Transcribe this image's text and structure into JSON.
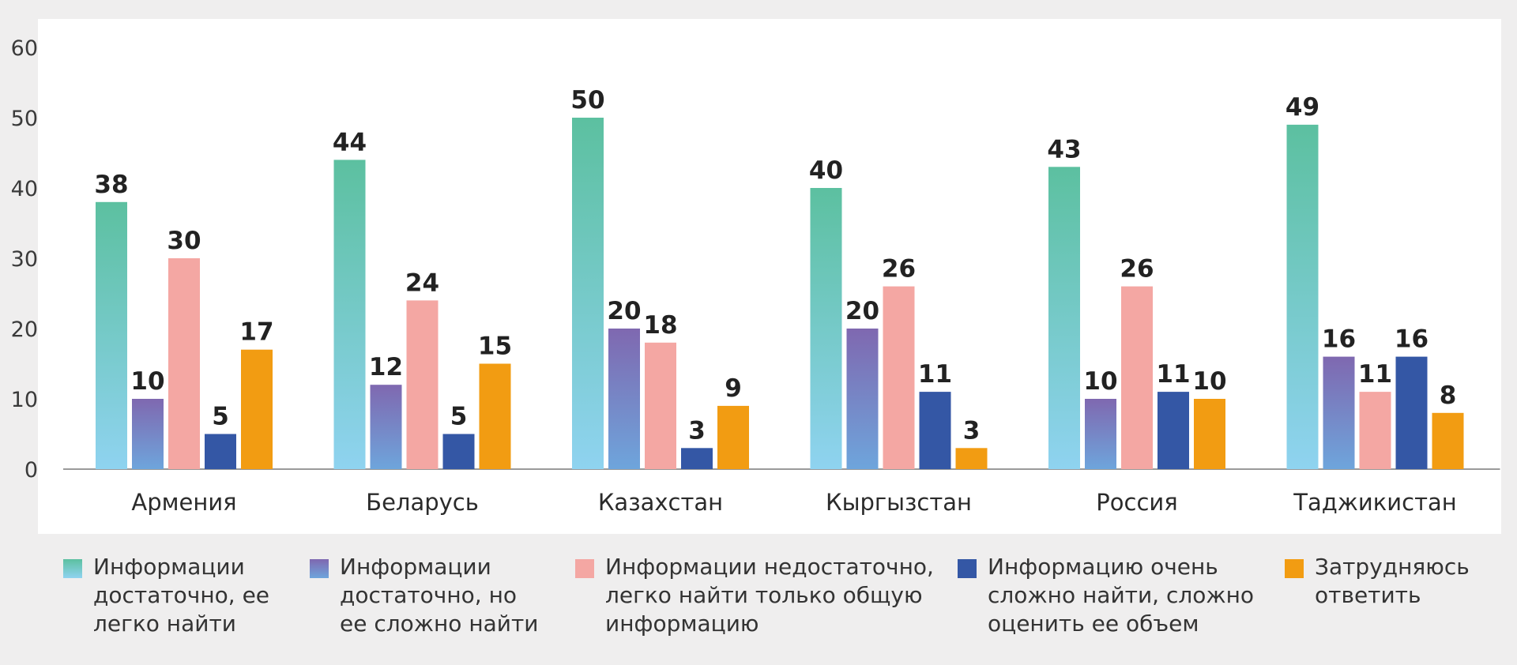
{
  "colors": {
    "frame_bg": "#efeeee",
    "panel_bg": "#ffffff"
  },
  "chart_data": {
    "type": "bar",
    "categories": [
      "Армения",
      "Беларусь",
      "Казахстан",
      "Кыргызстан",
      "Россия",
      "Таджикистан"
    ],
    "ylim": [
      0,
      60
    ],
    "yticks": [
      0,
      10,
      20,
      30,
      40,
      50,
      60
    ],
    "grid": false,
    "legend_position": "bottom",
    "series": [
      {
        "name": "Информации достаточно, ее легко найти",
        "name_lines": "Информации\nдостаточно, ее\nлегко найти",
        "values": [
          38,
          44,
          50,
          40,
          43,
          49
        ],
        "color_top": "#5cc0a0",
        "color_bottom": "#8fd3f0"
      },
      {
        "name": "Информации достаточно, но ее сложно найти",
        "name_lines": "Информации\nдостаточно, но\nее сложно найти",
        "values": [
          10,
          12,
          20,
          20,
          10,
          16
        ],
        "color_top": "#7f68b0",
        "color_bottom": "#6ea5dc"
      },
      {
        "name": "Информации недостаточно, легко найти только общую информацию",
        "name_lines": "Информации недостаточно,\nлегко найти только общую\nинформацию",
        "values": [
          30,
          24,
          18,
          26,
          26,
          11
        ],
        "color_top": "#f4a7a3",
        "color_bottom": "#f4a7a3"
      },
      {
        "name": "Информацию очень сложно найти, сложно оценить ее объем",
        "name_lines": "Информацию очень\nсложно найти, сложно\nоценить ее объем",
        "values": [
          5,
          5,
          3,
          11,
          11,
          16
        ],
        "color_top": "#3457a5",
        "color_bottom": "#3457a5"
      },
      {
        "name": "Затрудняюсь ответить",
        "name_lines": "Затрудняюсь\nответить",
        "values": [
          17,
          15,
          9,
          3,
          10,
          8
        ],
        "color_top": "#f29c12",
        "color_bottom": "#f29c12"
      }
    ]
  }
}
